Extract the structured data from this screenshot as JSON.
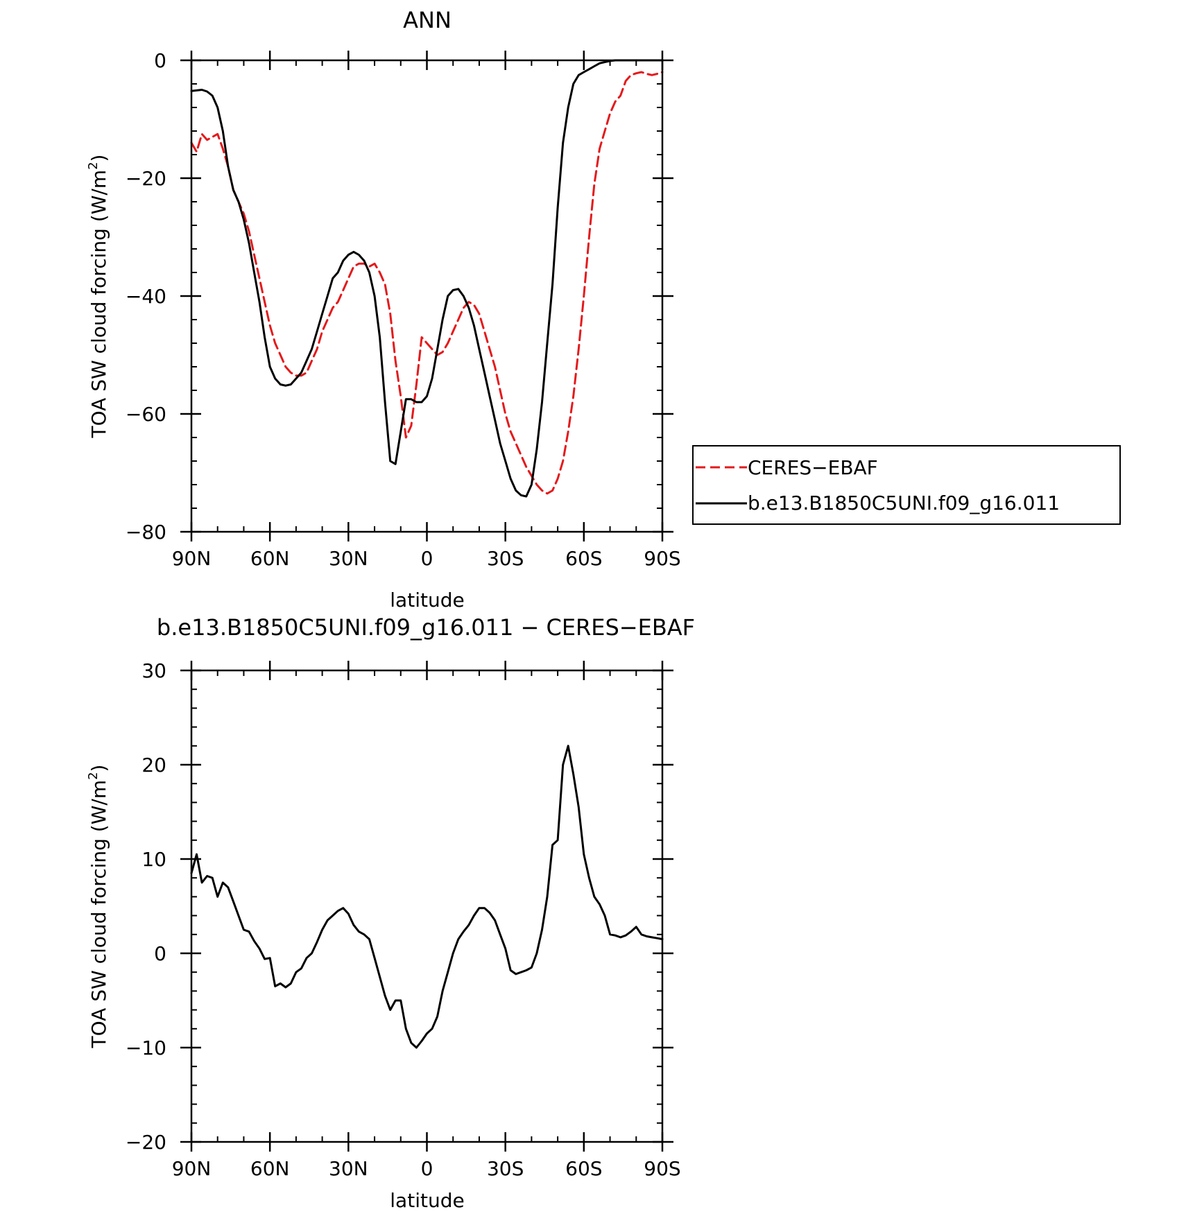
{
  "chart_data": [
    {
      "type": "line",
      "title": "ANN",
      "xlabel": "latitude",
      "ylabel": "TOA SW cloud forcing (W/m",
      "ylabel_superscript": "2",
      "ylabel_suffix": ")",
      "xlim": [
        90,
        -90
      ],
      "ylim": [
        -80,
        0
      ],
      "xticks": [
        {
          "value": 90,
          "label": "90N"
        },
        {
          "value": 60,
          "label": "60N"
        },
        {
          "value": 30,
          "label": "30N"
        },
        {
          "value": 0,
          "label": "0"
        },
        {
          "value": -30,
          "label": "30S"
        },
        {
          "value": -60,
          "label": "60S"
        },
        {
          "value": -90,
          "label": "90S"
        }
      ],
      "yticks": [
        {
          "value": 0,
          "label": "0"
        },
        {
          "value": -20,
          "label": "−20"
        },
        {
          "value": -40,
          "label": "−40"
        },
        {
          "value": -60,
          "label": "−60"
        },
        {
          "value": -80,
          "label": "−80"
        }
      ],
      "legend": "outside-right",
      "grid": false,
      "series": [
        {
          "name": "CERES−EBAF",
          "color": "#e41a1c",
          "dash": "dashed",
          "x": [
            90,
            88,
            86,
            84,
            82,
            80,
            78,
            76,
            74,
            72,
            70,
            68,
            66,
            64,
            62,
            60,
            58,
            56,
            54,
            52,
            50,
            48,
            46,
            44,
            42,
            40,
            38,
            36,
            34,
            32,
            30,
            28,
            26,
            24,
            22,
            20,
            18,
            16,
            14,
            12,
            10,
            8,
            6,
            4,
            2,
            0,
            -2,
            -4,
            -6,
            -8,
            -10,
            -12,
            -14,
            -16,
            -18,
            -20,
            -22,
            -24,
            -26,
            -28,
            -30,
            -32,
            -34,
            -36,
            -38,
            -40,
            -42,
            -44,
            -46,
            -48,
            -50,
            -52,
            -54,
            -56,
            -58,
            -60,
            -62,
            -64,
            -66,
            -68,
            -70,
            -72,
            -74,
            -76,
            -78,
            -80,
            -82,
            -84,
            -86,
            -88,
            -90
          ],
          "y": [
            -14,
            -15.5,
            -12.5,
            -13.5,
            -13,
            -12.5,
            -15,
            -18,
            -22,
            -24,
            -26,
            -29,
            -33,
            -37,
            -41,
            -45,
            -48,
            -50,
            -52,
            -53,
            -53.5,
            -53.5,
            -53,
            -51,
            -49,
            -46,
            -44,
            -42,
            -41,
            -39,
            -37,
            -35,
            -34.5,
            -34.5,
            -35,
            -34.5,
            -36,
            -38,
            -43,
            -51,
            -57,
            -64,
            -62,
            -55,
            -47,
            -48,
            -49,
            -50,
            -49.5,
            -48,
            -46,
            -44,
            -42,
            -41,
            -41.5,
            -43,
            -46,
            -49,
            -52,
            -56,
            -60,
            -63,
            -65,
            -67,
            -69,
            -70.5,
            -72,
            -73,
            -73.5,
            -73,
            -71,
            -68,
            -63,
            -57,
            -49,
            -40,
            -30,
            -21,
            -15,
            -12,
            -9,
            -7,
            -6,
            -3.5,
            -2.5,
            -2.2,
            -2,
            -2.3,
            -2.5,
            -2.3,
            -2
          ]
        },
        {
          "name": "b.e13.B1850C5UNI.f09_g16.011",
          "color": "#000000",
          "dash": "solid",
          "x": [
            90,
            88,
            86,
            84,
            82,
            80,
            78,
            76,
            74,
            72,
            70,
            68,
            66,
            64,
            62,
            60,
            58,
            56,
            54,
            52,
            50,
            48,
            46,
            44,
            42,
            40,
            38,
            36,
            34,
            32,
            30,
            28,
            26,
            24,
            22,
            20,
            18,
            16,
            14,
            12,
            10,
            8,
            6,
            4,
            2,
            0,
            -2,
            -4,
            -6,
            -8,
            -10,
            -12,
            -14,
            -16,
            -18,
            -20,
            -22,
            -24,
            -26,
            -28,
            -30,
            -32,
            -34,
            -36,
            -38,
            -40,
            -42,
            -44,
            -46,
            -48,
            -50,
            -52,
            -54,
            -56,
            -58,
            -60,
            -62,
            -64,
            -66,
            -68,
            -70,
            -72,
            -74,
            -76,
            -78,
            -80,
            -82,
            -84,
            -86,
            -88,
            -90
          ],
          "y": [
            -5.2,
            -5.1,
            -5,
            -5.3,
            -6,
            -8,
            -12,
            -18,
            -22,
            -24,
            -27,
            -31,
            -36,
            -41,
            -47,
            -52,
            -54,
            -55,
            -55.2,
            -55,
            -54,
            -53,
            -51,
            -49,
            -46,
            -43,
            -40,
            -37,
            -36,
            -34,
            -33,
            -32.5,
            -33,
            -34,
            -36,
            -40,
            -47,
            -58,
            -68,
            -68.5,
            -63,
            -57.5,
            -57.5,
            -58,
            -58,
            -57,
            -54,
            -49,
            -44,
            -40,
            -39,
            -38.8,
            -40,
            -42,
            -45,
            -49,
            -53,
            -57,
            -61,
            -65,
            -68,
            -71,
            -73,
            -73.8,
            -74,
            -72,
            -66,
            -58,
            -48,
            -38,
            -25,
            -14,
            -8,
            -4,
            -2.5,
            -2,
            -1.5,
            -1,
            -0.5,
            -0.3,
            -0.1,
            0,
            0,
            0,
            0,
            0,
            0,
            0,
            0,
            0,
            0
          ]
        }
      ]
    },
    {
      "type": "line",
      "title": "b.e13.B1850C5UNI.f09_g16.011 − CERES−EBAF",
      "xlabel": "latitude",
      "ylabel": "TOA SW cloud forcing (W/m",
      "ylabel_superscript": "2",
      "ylabel_suffix": ")",
      "xlim": [
        90,
        -90
      ],
      "ylim": [
        -20,
        30
      ],
      "xticks": [
        {
          "value": 90,
          "label": "90N"
        },
        {
          "value": 60,
          "label": "60N"
        },
        {
          "value": 30,
          "label": "30N"
        },
        {
          "value": 0,
          "label": "0"
        },
        {
          "value": -30,
          "label": "30S"
        },
        {
          "value": -60,
          "label": "60S"
        },
        {
          "value": -90,
          "label": "90S"
        }
      ],
      "yticks": [
        {
          "value": 30,
          "label": "30"
        },
        {
          "value": 20,
          "label": "20"
        },
        {
          "value": 10,
          "label": "10"
        },
        {
          "value": 0,
          "label": "0"
        },
        {
          "value": -10,
          "label": "−10"
        },
        {
          "value": -20,
          "label": "−20"
        }
      ],
      "grid": false,
      "series": [
        {
          "name": "",
          "color": "#000000",
          "dash": "solid",
          "x": [
            90,
            88,
            86,
            84,
            82,
            80,
            78,
            76,
            74,
            72,
            70,
            68,
            66,
            64,
            62,
            60,
            58,
            56,
            54,
            52,
            50,
            48,
            46,
            44,
            42,
            40,
            38,
            36,
            34,
            32,
            30,
            28,
            26,
            24,
            22,
            20,
            18,
            16,
            14,
            12,
            10,
            8,
            6,
            4,
            2,
            0,
            -2,
            -4,
            -6,
            -8,
            -10,
            -12,
            -14,
            -16,
            -18,
            -20,
            -22,
            -24,
            -26,
            -28,
            -30,
            -32,
            -34,
            -36,
            -38,
            -40,
            -42,
            -44,
            -46,
            -48,
            -50,
            -52,
            -54,
            -56,
            -58,
            -60,
            -62,
            -64,
            -66,
            -68,
            -70,
            -72,
            -74,
            -76,
            -78,
            -80,
            -82,
            -84,
            -86,
            -88,
            -90
          ],
          "y": [
            8.5,
            10.5,
            7.5,
            8.2,
            8,
            6,
            7.5,
            7,
            5.5,
            4,
            2.5,
            2.3,
            1.3,
            0.5,
            -0.6,
            -0.5,
            -3.5,
            -3.2,
            -3.6,
            -3.2,
            -2,
            -1.6,
            -0.5,
            0,
            1.2,
            2.5,
            3.5,
            4,
            4.5,
            4.8,
            4.2,
            3,
            2.3,
            2,
            1.5,
            -0.5,
            -2.5,
            -4.5,
            -6,
            -5,
            -5,
            -8,
            -9.5,
            -10,
            -9.3,
            -8.5,
            -8,
            -6.7,
            -4,
            -2,
            0,
            1.5,
            2.3,
            3,
            4,
            4.8,
            4.8,
            4.3,
            3.5,
            2,
            0.5,
            -1.8,
            -2.2,
            -2,
            -1.8,
            -1.5,
            0,
            2.5,
            6,
            11.5,
            12,
            20,
            22,
            19,
            15.5,
            10.5,
            8,
            6,
            5.2,
            4,
            2,
            1.9,
            1.7,
            1.9,
            2.3,
            2.8,
            2,
            1.8,
            1.7,
            1.6,
            1.5
          ]
        }
      ]
    }
  ]
}
